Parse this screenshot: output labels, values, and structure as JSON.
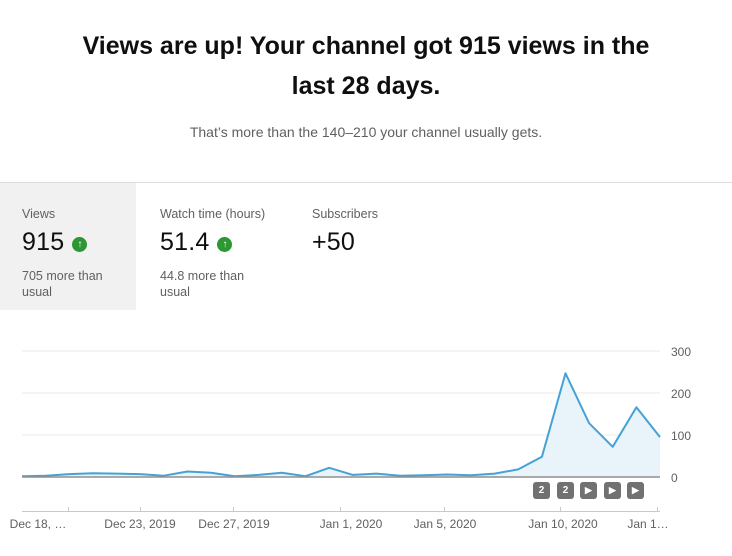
{
  "header": {
    "title": "Views are up! Your channel got 915 views in the last 28 days.",
    "subtitle": "That’s more than the 140–210 your channel usually gets."
  },
  "icons": {
    "up_arrow": "↑"
  },
  "stats": [
    {
      "label": "Views",
      "value": "915",
      "trend": "up",
      "note": "705 more than usual"
    },
    {
      "label": "Watch time (hours)",
      "value": "51.4",
      "trend": "up",
      "note": "44.8 more than usual"
    },
    {
      "label": "Subscribers",
      "value": "+50",
      "trend": "none",
      "note": ""
    }
  ],
  "chart_data": {
    "type": "line",
    "title": "",
    "xlabel": "",
    "ylabel": "Views",
    "ylim": [
      0,
      300
    ],
    "grid": true,
    "legend": "none",
    "x": [
      "Dec 18, 2019",
      "Dec 19, 2019",
      "Dec 20, 2019",
      "Dec 21, 2019",
      "Dec 22, 2019",
      "Dec 23, 2019",
      "Dec 24, 2019",
      "Dec 25, 2019",
      "Dec 26, 2019",
      "Dec 27, 2019",
      "Dec 28, 2019",
      "Dec 29, 2019",
      "Dec 30, 2019",
      "Dec 31, 2019",
      "Jan 1, 2020",
      "Jan 2, 2020",
      "Jan 3, 2020",
      "Jan 4, 2020",
      "Jan 5, 2020",
      "Jan 6, 2020",
      "Jan 7, 2020",
      "Jan 8, 2020",
      "Jan 9, 2020",
      "Jan 10, 2020",
      "Jan 11, 2020",
      "Jan 12, 2020",
      "Jan 13, 2020",
      "Jan 14, 2020"
    ],
    "values": [
      2,
      3,
      7,
      9,
      8,
      7,
      3,
      13,
      10,
      2,
      5,
      10,
      2,
      22,
      5,
      8,
      3,
      4,
      6,
      4,
      8,
      18,
      48,
      247,
      128,
      72,
      166,
      95
    ],
    "x_tick_labels": [
      "Dec 18, …",
      "Dec 23, 2019",
      "Dec 27, 2019",
      "Jan 1, 2020",
      "Jan 5, 2020",
      "Jan 10, 2020",
      "Jan 1…"
    ],
    "y_ticks": [
      "300",
      "200",
      "100",
      "0"
    ],
    "line_color": "#46a2d5",
    "fill_color": "#e9f3fa",
    "markers": [
      {
        "label": "2"
      },
      {
        "label": "2"
      },
      {
        "label": "▶"
      },
      {
        "label": "▶"
      },
      {
        "label": "▶"
      }
    ]
  }
}
